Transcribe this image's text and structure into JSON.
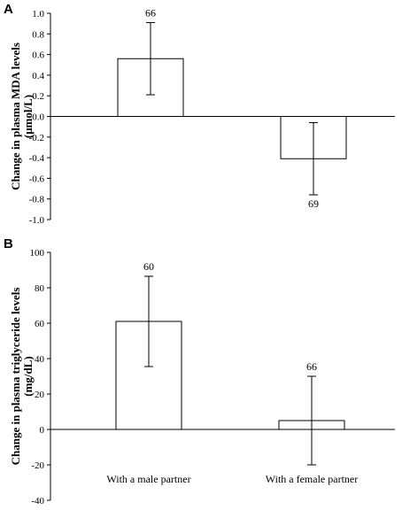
{
  "colors": {
    "bar_fill": "#ffffff",
    "stroke": "#000000",
    "background": "#ffffff"
  },
  "chart_data": [
    {
      "panel": "A",
      "type": "bar",
      "title": "",
      "xlabel": "",
      "ylabel_lines": [
        "Change in plasma MDA levels",
        "(μmol/L)"
      ],
      "ylim": [
        -1.0,
        1.0
      ],
      "yticks": [
        -1.0,
        -0.8,
        -0.6,
        -0.4,
        -0.2,
        0.0,
        0.2,
        0.4,
        0.6,
        0.8,
        1.0
      ],
      "ytick_labels": [
        "-1.0",
        "-0.8",
        "-0.6",
        "-0.4",
        "-0.2",
        "0.0",
        "0.2",
        "0.4",
        "0.6",
        "0.8",
        "1.0"
      ],
      "grid": false,
      "legend": "none",
      "categories": [
        "With a male partner",
        "With a female partner"
      ],
      "show_category_labels": false,
      "values": [
        0.56,
        -0.41
      ],
      "error": [
        0.35,
        0.35
      ],
      "n_labels": [
        "66",
        "69"
      ]
    },
    {
      "panel": "B",
      "type": "bar",
      "title": "",
      "xlabel": "",
      "ylabel_lines": [
        "Change in plasma triglyceride levels",
        "(mg/dL)"
      ],
      "ylim": [
        -40,
        100
      ],
      "yticks": [
        -40,
        -20,
        0,
        20,
        40,
        60,
        80,
        100
      ],
      "ytick_labels": [
        "-40",
        "-20",
        "0",
        "20",
        "40",
        "60",
        "80",
        "100"
      ],
      "grid": false,
      "legend": "none",
      "categories": [
        "With a male partner",
        "With a female partner"
      ],
      "show_category_labels": true,
      "values": [
        61,
        5
      ],
      "error": [
        25.5,
        25
      ],
      "n_labels": [
        "60",
        "66"
      ]
    }
  ]
}
